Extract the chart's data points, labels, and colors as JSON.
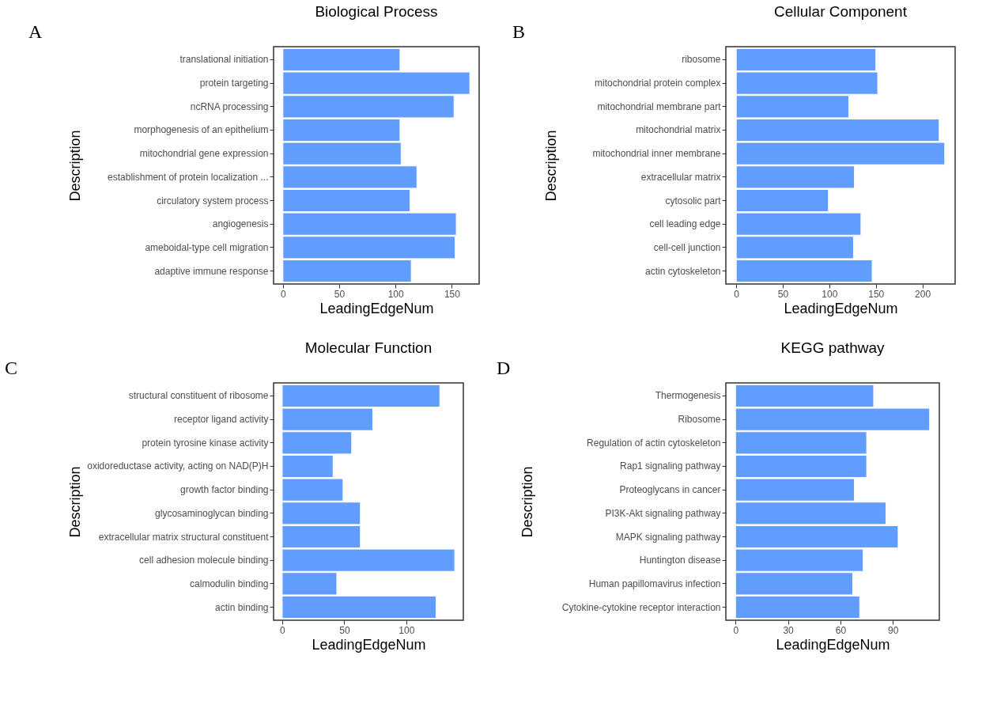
{
  "chart_data": [
    {
      "type": "bar",
      "orientation": "horizontal",
      "title": "Biological Process",
      "xlabel": "LeadingEdgeNum",
      "ylabel": "Description",
      "annotations": [
        "A"
      ],
      "grid": false,
      "legend": false,
      "categories": [
        "translational initiation",
        "protein targeting",
        "ncRNA processing",
        "morphogenesis of an epithelium",
        "mitochondrial gene expression",
        "establishment of protein localization ...",
        "circulatory system process",
        "angiogenesis",
        "ameboidal-type cell migration",
        "adaptive immune response"
      ],
      "values": [
        104,
        166,
        152,
        104,
        105,
        119,
        113,
        154,
        153,
        114
      ],
      "color": "#619cff",
      "xlim": [
        -8.3,
        174.3
      ],
      "xticks": [
        0,
        50,
        100,
        150
      ]
    },
    {
      "type": "bar",
      "orientation": "horizontal",
      "title": "Cellular Component",
      "xlabel": "LeadingEdgeNum",
      "ylabel": "Description",
      "annotations": [
        "B"
      ],
      "grid": false,
      "legend": false,
      "categories": [
        "ribosome",
        "mitochondrial protein complex",
        "mitochondrial membrane part",
        "mitochondrial matrix",
        "mitochondrial inner membrane",
        "extracellular matrix",
        "cytosolic part",
        "cell leading edge",
        "cell-cell junction",
        "actin cytoskeleton"
      ],
      "values": [
        150,
        152,
        121,
        218,
        224,
        127,
        99,
        134,
        126,
        146
      ],
      "color": "#619cff",
      "xlim": [
        -11.2,
        235.2
      ],
      "xticks": [
        0,
        50,
        100,
        150,
        200
      ]
    },
    {
      "type": "bar",
      "orientation": "horizontal",
      "title": "Molecular Function",
      "xlabel": "LeadingEdgeNum",
      "ylabel": "Description",
      "annotations": [
        "C"
      ],
      "grid": false,
      "legend": false,
      "categories": [
        "structural constituent of ribosome",
        "receptor ligand activity",
        "protein tyrosine kinase activity",
        "oxidoreductase activity, acting on NAD(P)H",
        "growth factor binding",
        "glycosaminoglycan binding",
        "extracellular matrix structural constituent",
        "cell adhesion molecule binding",
        "calmodulin binding",
        "actin binding"
      ],
      "values": [
        127,
        73,
        56,
        41,
        49,
        63,
        63,
        139,
        44,
        124
      ],
      "color": "#619cff",
      "xlim": [
        -6.95,
        145.95
      ],
      "xticks": [
        0,
        50,
        100
      ]
    },
    {
      "type": "bar",
      "orientation": "horizontal",
      "title": "KEGG pathway",
      "xlabel": "LeadingEdgeNum",
      "ylabel": "Description",
      "annotations": [
        "D"
      ],
      "grid": false,
      "legend": false,
      "categories": [
        "Thermogenesis",
        "Ribosome",
        "Regulation of actin cytoskeleton",
        "Rap1 signaling pathway",
        "Proteoglycans in cancer",
        "PI3K-Akt signaling pathway",
        "MAPK signaling pathway",
        "Huntington disease",
        "Human papillomavirus infection",
        "Cytokine-cytokine receptor interaction"
      ],
      "values": [
        79,
        111,
        75,
        75,
        68,
        86,
        93,
        73,
        67,
        71
      ],
      "color": "#619cff",
      "xlim": [
        -5.55,
        116.55
      ],
      "xticks": [
        0,
        30,
        60,
        90
      ]
    }
  ]
}
